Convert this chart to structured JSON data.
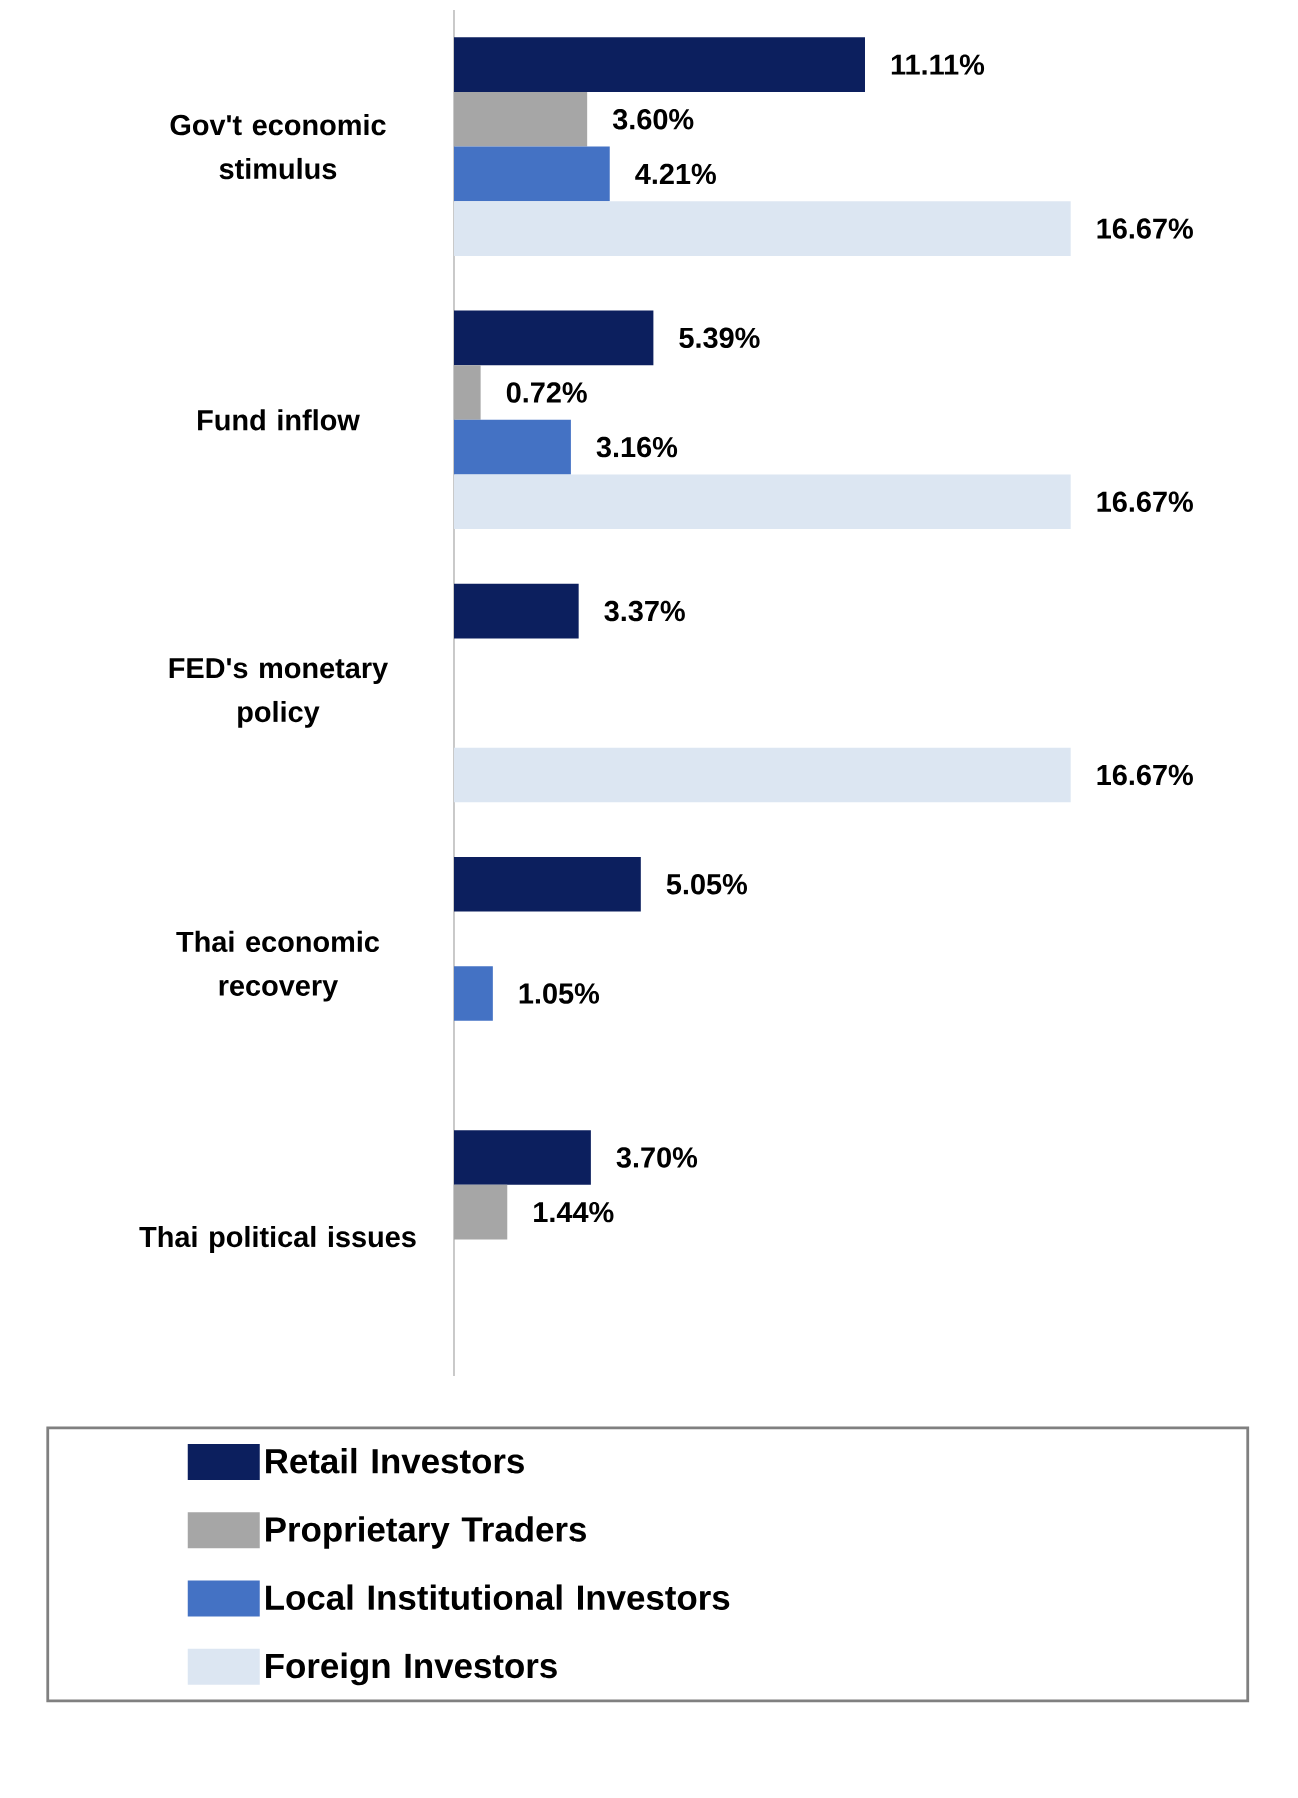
{
  "chart_data": {
    "type": "bar",
    "orientation": "horizontal",
    "legend": "bottom",
    "categories": [
      "Gov't economic stimulus",
      "Fund inflow",
      "FED's monetary policy",
      "Thai economic recovery",
      "Thai political issues"
    ],
    "series": [
      {
        "name": "Retail Investors",
        "color": "#0c1f5e",
        "values": [
          11.11,
          5.39,
          3.37,
          5.05,
          3.7
        ],
        "value_labels": [
          "11.11%",
          "5.39%",
          "3.37%",
          "5.05%",
          "3.70%"
        ]
      },
      {
        "name": "Proprietary Traders",
        "color": "#a6a6a6",
        "values": [
          3.6,
          0.72,
          null,
          null,
          1.44
        ],
        "value_labels": [
          "3.60%",
          "0.72%",
          null,
          null,
          "1.44%"
        ]
      },
      {
        "name": "Local Institutional Investors",
        "color": "#4472c4",
        "values": [
          4.21,
          3.16,
          null,
          1.05,
          null
        ],
        "value_labels": [
          "4.21%",
          "3.16%",
          null,
          "1.05%",
          null
        ]
      },
      {
        "name": "Foreign Investors",
        "color": "#dce6f2",
        "values": [
          16.67,
          16.67,
          16.67,
          null,
          null
        ],
        "value_labels": [
          "16.67%",
          "16.67%",
          "16.67%",
          null,
          null
        ]
      }
    ]
  }
}
